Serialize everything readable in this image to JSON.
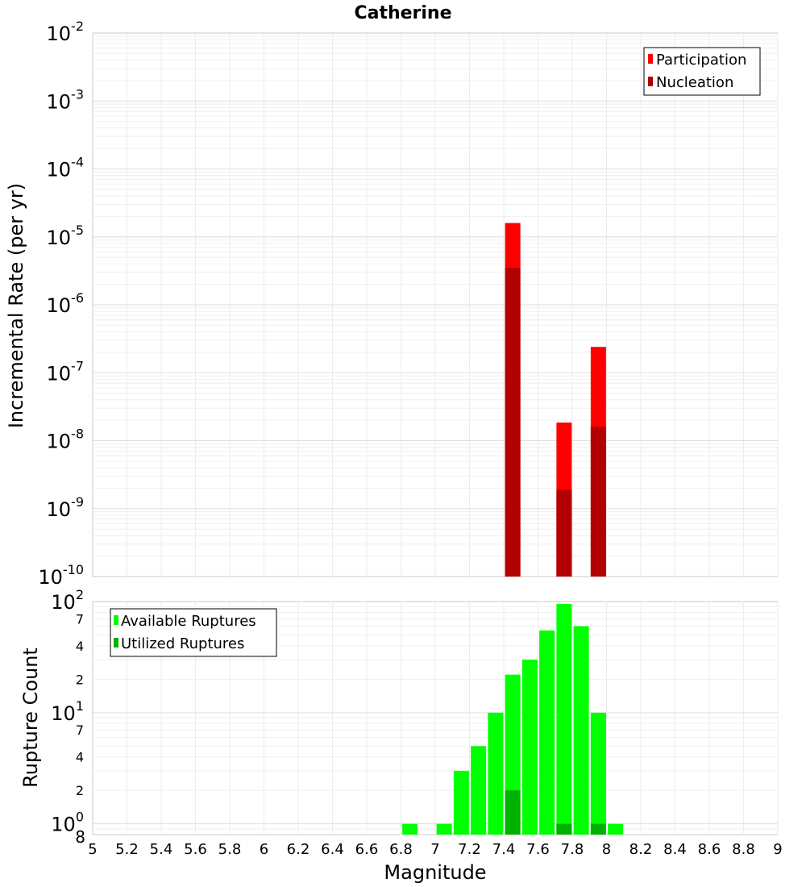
{
  "title": "Catherine",
  "chart_data": [
    {
      "type": "bar",
      "panel": "top",
      "ylabel": "Incremental Rate (per yr)",
      "yscale": "log",
      "ylim": [
        1e-10,
        0.01
      ],
      "xlim": [
        5,
        9
      ],
      "y_ticks": [
        {
          "base": "10",
          "exp": "-2"
        },
        {
          "base": "10",
          "exp": "-3"
        },
        {
          "base": "10",
          "exp": "-4"
        },
        {
          "base": "10",
          "exp": "-5"
        },
        {
          "base": "10",
          "exp": "-6"
        },
        {
          "base": "10",
          "exp": "-7"
        },
        {
          "base": "10",
          "exp": "-8"
        },
        {
          "base": "10",
          "exp": "-9"
        },
        {
          "base": "10",
          "exp": "-10"
        }
      ],
      "legend_position": "top-right",
      "series": [
        {
          "name": "Participation",
          "color": "#ff0000",
          "x": [
            7.45,
            7.75,
            7.95
          ],
          "values": [
            1.6e-05,
            1.85e-08,
            2.4e-07
          ]
        },
        {
          "name": "Nucleation",
          "color": "#b20000",
          "x": [
            7.45,
            7.75,
            7.95
          ],
          "values": [
            3.5e-06,
            1.9e-09,
            1.6e-08
          ]
        }
      ]
    },
    {
      "type": "bar",
      "panel": "bottom",
      "ylabel": "Rupture Count",
      "xlabel": "Magnitude",
      "yscale": "log",
      "ylim": [
        0.8,
        100
      ],
      "xlim": [
        5,
        9
      ],
      "x_ticks": [
        "5",
        "5.2",
        "5.4",
        "5.6",
        "5.8",
        "6",
        "6.2",
        "6.4",
        "6.6",
        "6.8",
        "7",
        "7.2",
        "7.4",
        "7.6",
        "7.8",
        "8",
        "8.2",
        "8.4",
        "8.6",
        "8.8",
        "9"
      ],
      "y_major_ticks": [
        {
          "base": "10",
          "exp": "2"
        },
        {
          "base": "10",
          "exp": "1"
        },
        {
          "base": "10",
          "exp": "0"
        }
      ],
      "y_minor_ticks": [
        {
          "label": "7",
          "value": 70
        },
        {
          "label": "4",
          "value": 40
        },
        {
          "label": "2",
          "value": 20
        },
        {
          "label": "7",
          "value": 7
        },
        {
          "label": "4",
          "value": 4
        },
        {
          "label": "2",
          "value": 2
        }
      ],
      "y_bottom_label": "8",
      "legend_position": "top-left",
      "series": [
        {
          "name": "Available Ruptures",
          "color": "#00ff00",
          "x": [
            6.85,
            7.05,
            7.15,
            7.25,
            7.35,
            7.45,
            7.55,
            7.65,
            7.75,
            7.85,
            7.95,
            8.05
          ],
          "values": [
            1,
            1,
            3,
            5,
            10,
            22,
            30,
            55,
            95,
            60,
            10,
            1
          ]
        },
        {
          "name": "Utilized Ruptures",
          "color": "#00b200",
          "x": [
            7.45,
            7.75,
            7.95
          ],
          "values": [
            2,
            1,
            1
          ]
        }
      ]
    }
  ]
}
